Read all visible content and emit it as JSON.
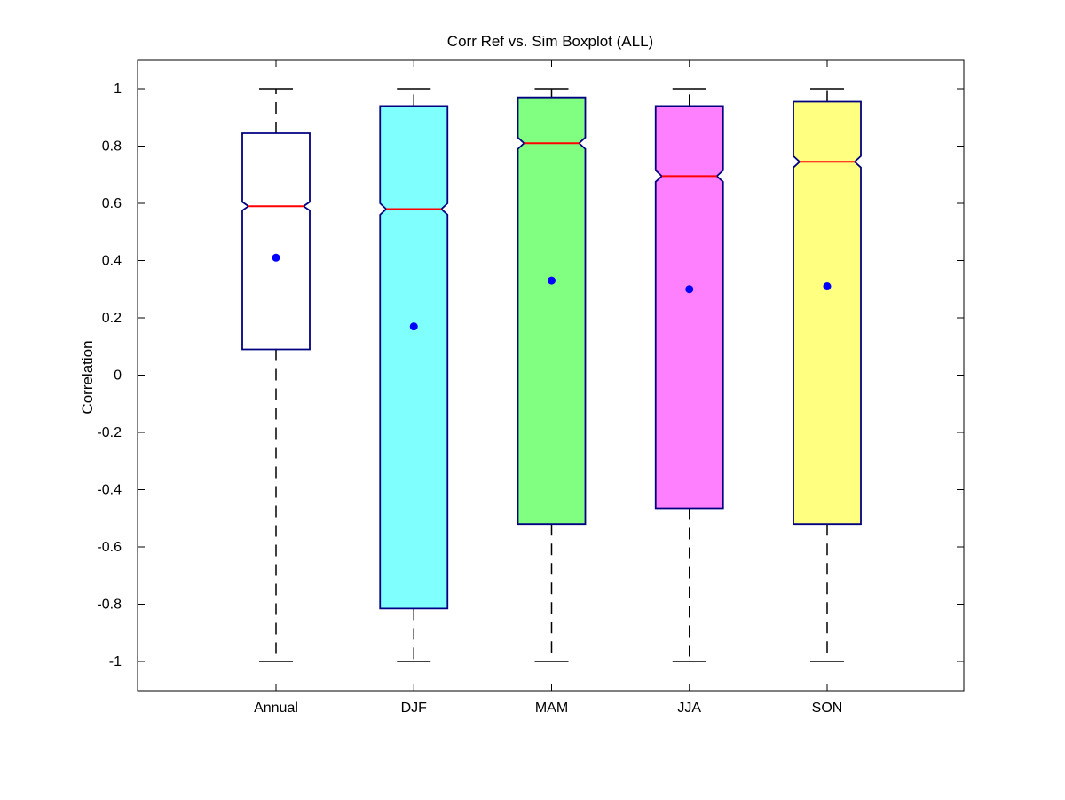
{
  "chart_data": {
    "type": "boxplot",
    "title": "Corr Ref vs. Sim Boxplot (ALL)",
    "xlabel": "",
    "ylabel": "Correlation",
    "ylim": [
      -1.1,
      1.1
    ],
    "yticks": [
      1,
      0.8,
      0.6,
      0.4,
      0.2,
      0,
      -0.2,
      -0.4,
      -0.6,
      -0.8,
      -1
    ],
    "ytick_labels": [
      "1",
      "0.8",
      "0.6",
      "0.4",
      "0.2",
      "0",
      "-0.2",
      "-0.4",
      "-0.6",
      "-0.8",
      "-1"
    ],
    "categories": [
      "Annual",
      "DJF",
      "MAM",
      "JJA",
      "SON"
    ],
    "notched": true,
    "grid": false,
    "boxes": [
      {
        "label": "Annual",
        "color": "#ffffff",
        "whisker_low": -1.0,
        "q1": 0.09,
        "median": 0.59,
        "q3": 0.845,
        "whisker_high": 1.0,
        "notch_low": 0.575,
        "notch_high": 0.605,
        "mean": 0.41
      },
      {
        "label": "DJF",
        "color": "#80ffff",
        "whisker_low": -1.0,
        "q1": -0.815,
        "median": 0.58,
        "q3": 0.94,
        "whisker_high": 1.0,
        "notch_low": 0.56,
        "notch_high": 0.6,
        "mean": 0.17
      },
      {
        "label": "MAM",
        "color": "#80ff80",
        "whisker_low": -1.0,
        "q1": -0.52,
        "median": 0.81,
        "q3": 0.97,
        "whisker_high": 1.0,
        "notch_low": 0.79,
        "notch_high": 0.83,
        "mean": 0.33
      },
      {
        "label": "JJA",
        "color": "#ff80ff",
        "whisker_low": -1.0,
        "q1": -0.465,
        "median": 0.695,
        "q3": 0.94,
        "whisker_high": 1.0,
        "notch_low": 0.675,
        "notch_high": 0.715,
        "mean": 0.3
      },
      {
        "label": "SON",
        "color": "#ffff80",
        "whisker_low": -1.0,
        "q1": -0.52,
        "median": 0.745,
        "q3": 0.955,
        "whisker_high": 1.0,
        "notch_low": 0.725,
        "notch_high": 0.765,
        "mean": 0.31
      }
    ],
    "box_edge_color": "#000080",
    "median_color": "#ff0000",
    "mean_marker_color": "#0000ff",
    "whisker_color": "#000000"
  }
}
